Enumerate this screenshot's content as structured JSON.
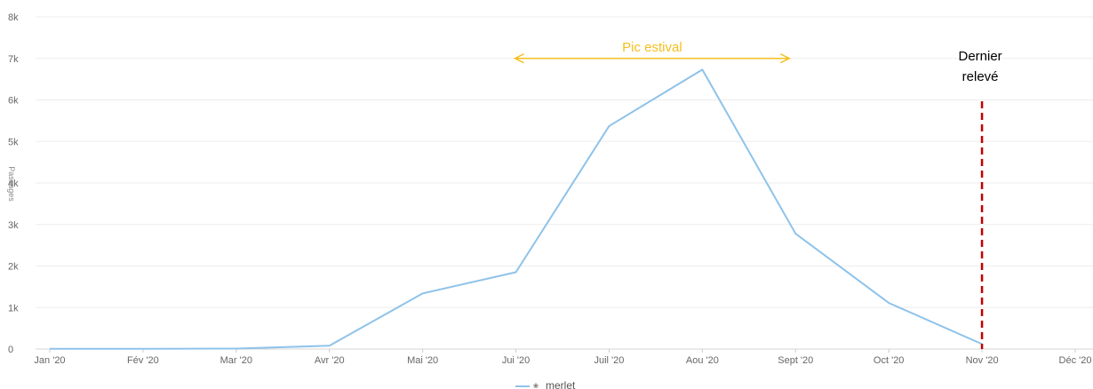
{
  "chart_data": {
    "type": "line",
    "title": "",
    "xlabel": "",
    "ylabel": "Passages",
    "x": [
      "Jan '20",
      "Fév '20",
      "Mar '20",
      "Avr '20",
      "Mai '20",
      "Jui '20",
      "Juil '20",
      "Aou '20",
      "Sept '20",
      "Oct '20",
      "Nov '20",
      "Déc '20"
    ],
    "series": [
      {
        "name": "merlet",
        "color": "#8ec3ea",
        "values": [
          5,
          5,
          10,
          80,
          1340,
          1850,
          5370,
          6730,
          2780,
          1110,
          120,
          null
        ]
      }
    ],
    "ylim": [
      0,
      8000
    ],
    "yticks": [
      0,
      1000,
      2000,
      3000,
      4000,
      5000,
      6000,
      7000,
      8000
    ],
    "ytick_labels": [
      "0",
      "1k",
      "2k",
      "3k",
      "4k",
      "5k",
      "6k",
      "7k",
      "8k"
    ],
    "grid": true,
    "legend": "bottom-center",
    "annotations": {
      "range": {
        "text": "Pic estival",
        "from": "Jui '20",
        "to": "Sept '20",
        "y": 7000,
        "color": "#f5bf1e"
      },
      "marker": {
        "line1": "Dernier",
        "line2": "relevé",
        "at": "Nov '20",
        "color": "#c00000"
      }
    }
  }
}
